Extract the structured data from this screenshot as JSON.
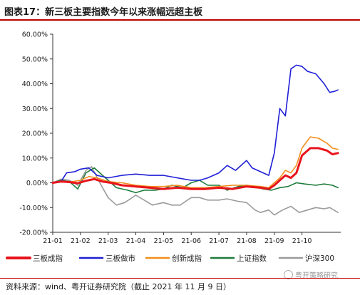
{
  "figure": {
    "title": "图表17：新三板主要指数今年以来涨幅远超主板",
    "source": "资料来源：wind、粤开证券研究院（截止 2021 年 11 月 9 日）",
    "watermark": "粤开策略研究"
  },
  "chart_data": {
    "type": "line",
    "ylim": [
      -20,
      60
    ],
    "y_ticks": [
      "60.00%",
      "50.00%",
      "40.00%",
      "30.00%",
      "20.00%",
      "10.00%",
      "0.00%",
      "-10.00%",
      "-20.00%"
    ],
    "x_ticks": [
      "21-01",
      "21-02",
      "21-03",
      "21-04",
      "21-05",
      "21-06",
      "21-07",
      "21-08",
      "21-09",
      "21-10"
    ],
    "xlim": [
      0,
      10.4
    ],
    "legend_position": "bottom",
    "series": [
      {
        "name": "三板成指",
        "color": "#e8141c",
        "x": [
          0,
          0.3,
          0.6,
          0.9,
          1.2,
          1.5,
          1.8,
          2.1,
          2.5,
          3,
          3.5,
          4,
          4.5,
          5,
          5.5,
          6,
          6.5,
          7,
          7.5,
          7.8,
          8.0,
          8.2,
          8.4,
          8.6,
          8.8,
          9.0,
          9.3,
          9.6,
          9.9,
          10.1,
          10.3
        ],
        "y": [
          0,
          0.5,
          0.3,
          -0.2,
          0.8,
          1.5,
          0.5,
          0,
          -1,
          -1.5,
          -2,
          -2.5,
          -2,
          -2.5,
          -2.5,
          -2,
          -2.5,
          -1.5,
          -2,
          -2.5,
          -1,
          1,
          3,
          2,
          4,
          11,
          14,
          14,
          13,
          11.5,
          12
        ]
      },
      {
        "name": "三板做市",
        "color": "#1f1fd6",
        "x": [
          0,
          0.3,
          0.5,
          0.8,
          1.0,
          1.3,
          1.6,
          2.0,
          2.5,
          3,
          3.5,
          4,
          4.5,
          5,
          5.3,
          5.6,
          6.0,
          6.3,
          6.6,
          7.0,
          7.2,
          7.5,
          7.8,
          8.0,
          8.2,
          8.4,
          8.6,
          8.8,
          9.0,
          9.2,
          9.5,
          9.8,
          10.0,
          10.2,
          10.3
        ],
        "y": [
          0,
          0.5,
          4,
          4.5,
          5.5,
          6,
          3,
          2,
          3,
          3.5,
          3,
          3,
          2,
          1,
          1,
          2,
          4,
          7,
          5,
          9,
          6,
          4.5,
          3,
          12,
          30,
          27,
          46,
          47.5,
          47,
          45,
          44,
          40,
          36.5,
          37,
          37.5
        ]
      },
      {
        "name": "创新成指",
        "color": "#f28e1c",
        "x": [
          0,
          0.3,
          0.6,
          1.0,
          1.3,
          1.6,
          2.0,
          2.5,
          3,
          3.5,
          4,
          4.5,
          5,
          5.5,
          6,
          6.5,
          7,
          7.5,
          7.8,
          8.0,
          8.2,
          8.4,
          8.6,
          8.8,
          9.0,
          9.3,
          9.6,
          9.9,
          10.1,
          10.3
        ],
        "y": [
          0,
          0.5,
          0.3,
          1,
          2.5,
          2,
          0.5,
          0,
          -1,
          -1.5,
          -1.5,
          -1,
          -2,
          -2,
          -1.5,
          -1,
          -1,
          -1.5,
          -2,
          0,
          2,
          5,
          4,
          7,
          14,
          18.5,
          18,
          16,
          14,
          13.5
        ]
      },
      {
        "name": "上证指数",
        "color": "#1e7c3a",
        "x": [
          0,
          0.3,
          0.6,
          0.9,
          1.2,
          1.5,
          1.8,
          2.0,
          2.3,
          2.7,
          3,
          3.3,
          3.7,
          4,
          4.3,
          4.7,
          5,
          5.3,
          5.6,
          6.0,
          6.3,
          6.7,
          7.0,
          7.3,
          7.6,
          7.9,
          8.2,
          8.5,
          8.8,
          9.1,
          9.5,
          9.8,
          10.1,
          10.3
        ],
        "y": [
          0,
          1,
          0.5,
          -2.5,
          4,
          6,
          3,
          1,
          -2,
          -3,
          -4,
          -3,
          -3,
          -2.5,
          -1,
          -2,
          0,
          1,
          -1,
          -1,
          -3,
          -1.5,
          -1,
          -1.5,
          -2.5,
          -3,
          -2,
          -1.5,
          0,
          -0.5,
          -1,
          -0.5,
          -1,
          -2
        ]
      },
      {
        "name": "沪深300",
        "color": "#9b9b9b",
        "x": [
          0,
          0.3,
          0.6,
          0.9,
          1.2,
          1.4,
          1.7,
          2.0,
          2.3,
          2.6,
          3.0,
          3.3,
          3.6,
          4.0,
          4.3,
          4.6,
          5.0,
          5.3,
          5.6,
          6.0,
          6.3,
          6.7,
          7.0,
          7.3,
          7.5,
          7.8,
          8.0,
          8.3,
          8.6,
          8.9,
          9.2,
          9.5,
          9.8,
          10.0,
          10.3
        ],
        "y": [
          0,
          1.5,
          1,
          -1,
          5,
          6.5,
          0,
          -6,
          -9,
          -8,
          -5,
          -7,
          -9,
          -8,
          -9,
          -9,
          -6,
          -6,
          -7,
          -7,
          -6.5,
          -7.5,
          -8,
          -11,
          -12,
          -11,
          -13,
          -11,
          -9.5,
          -12,
          -11,
          -10,
          -10.5,
          -10,
          -12
        ]
      }
    ]
  }
}
